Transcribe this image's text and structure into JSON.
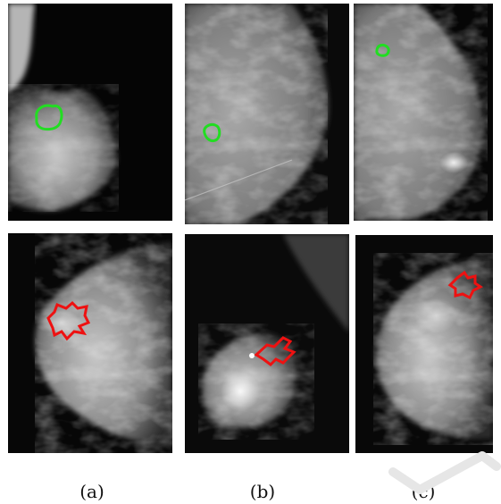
{
  "figure": {
    "panels": [
      {
        "id": "a-top",
        "column": "a",
        "row": "top",
        "outline": "benign",
        "outline_color": "#22dd22"
      },
      {
        "id": "b-top",
        "column": "b",
        "row": "top",
        "outline": "benign",
        "outline_color": "#22dd22"
      },
      {
        "id": "c-top",
        "column": "c",
        "row": "top",
        "outline": "benign",
        "outline_color": "#22dd22"
      },
      {
        "id": "a-bottom",
        "column": "a",
        "row": "bottom",
        "outline": "malignant",
        "outline_color": "#ee1111"
      },
      {
        "id": "b-bottom",
        "column": "b",
        "row": "bottom",
        "outline": "malignant",
        "outline_color": "#ee1111"
      },
      {
        "id": "c-bottom",
        "column": "c",
        "row": "bottom",
        "outline": "malignant",
        "outline_color": "#ee1111"
      }
    ],
    "captions": {
      "a": "(a)",
      "b": "(b)",
      "c": "(c)"
    }
  }
}
